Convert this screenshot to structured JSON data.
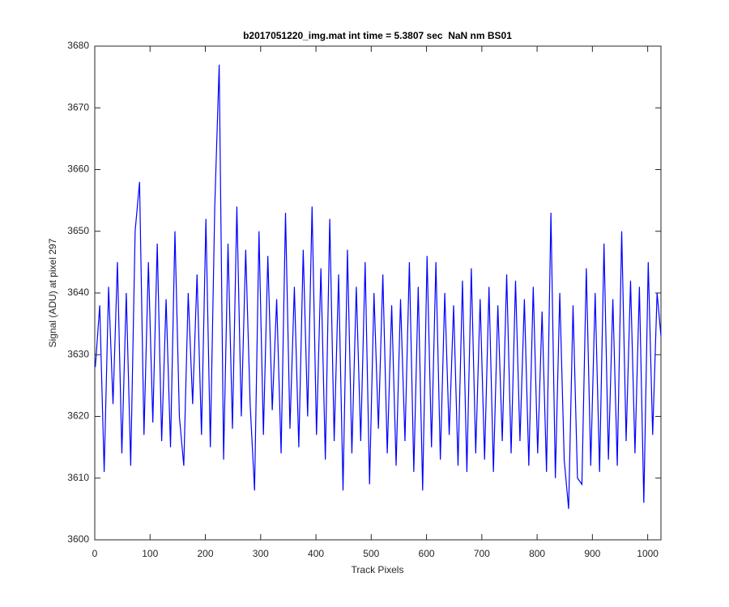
{
  "chart_data": {
    "type": "line",
    "title": "b2017051220_img.mat int time = 5.3807 sec  NaN nm BS01",
    "xlabel": "Track Pixels",
    "ylabel": "Signal (ADU) at pixel 297",
    "color": "#0000ff",
    "xlim": [
      0,
      1024
    ],
    "ylim": [
      3600,
      3680
    ],
    "xticks": [
      0,
      100,
      200,
      300,
      400,
      500,
      600,
      700,
      800,
      900,
      1000
    ],
    "yticks": [
      3600,
      3610,
      3620,
      3630,
      3640,
      3650,
      3660,
      3670,
      3680
    ],
    "grid": false,
    "x": [
      1,
      9,
      17,
      25,
      33,
      41,
      49,
      57,
      65,
      73,
      81,
      89,
      97,
      105,
      113,
      121,
      129,
      137,
      145,
      153,
      161,
      169,
      177,
      185,
      193,
      201,
      209,
      217,
      225,
      233,
      241,
      249,
      257,
      265,
      273,
      281,
      289,
      297,
      305,
      313,
      321,
      329,
      337,
      345,
      353,
      361,
      369,
      377,
      385,
      393,
      401,
      409,
      417,
      425,
      433,
      441,
      449,
      457,
      465,
      473,
      481,
      489,
      497,
      505,
      513,
      521,
      529,
      537,
      545,
      553,
      561,
      569,
      577,
      585,
      593,
      601,
      609,
      617,
      625,
      633,
      641,
      649,
      657,
      665,
      673,
      681,
      689,
      697,
      705,
      713,
      721,
      729,
      737,
      745,
      753,
      761,
      769,
      777,
      785,
      793,
      801,
      809,
      817,
      825,
      833,
      841,
      849,
      857,
      865,
      873,
      881,
      889,
      897,
      905,
      913,
      921,
      929,
      937,
      945,
      953,
      961,
      969,
      977,
      985,
      993,
      1001,
      1009,
      1017,
      1024
    ],
    "values": [
      3628,
      3638,
      3611,
      3641,
      3622,
      3645,
      3614,
      3640,
      3612,
      3650,
      3658,
      3617,
      3645,
      3619,
      3648,
      3616,
      3639,
      3615,
      3650,
      3620,
      3612,
      3640,
      3622,
      3643,
      3617,
      3652,
      3615,
      3654,
      3677,
      3613,
      3648,
      3618,
      3654,
      3620,
      3647,
      3622,
      3608,
      3650,
      3617,
      3646,
      3621,
      3639,
      3614,
      3653,
      3618,
      3641,
      3615,
      3647,
      3620,
      3654,
      3617,
      3644,
      3613,
      3652,
      3616,
      3643,
      3608,
      3647,
      3614,
      3641,
      3616,
      3645,
      3609,
      3640,
      3618,
      3643,
      3614,
      3638,
      3612,
      3639,
      3616,
      3645,
      3611,
      3641,
      3608,
      3646,
      3615,
      3645,
      3613,
      3640,
      3617,
      3638,
      3612,
      3642,
      3611,
      3644,
      3614,
      3639,
      3613,
      3641,
      3611,
      3638,
      3616,
      3643,
      3614,
      3642,
      3616,
      3639,
      3612,
      3641,
      3614,
      3637,
      3611,
      3653,
      3610,
      3640,
      3613,
      3605,
      3638,
      3610,
      3609,
      3644,
      3612,
      3640,
      3611,
      3648,
      3613,
      3639,
      3612,
      3650,
      3616,
      3642,
      3614,
      3641,
      3606,
      3645,
      3617,
      3640,
      3633
    ]
  }
}
